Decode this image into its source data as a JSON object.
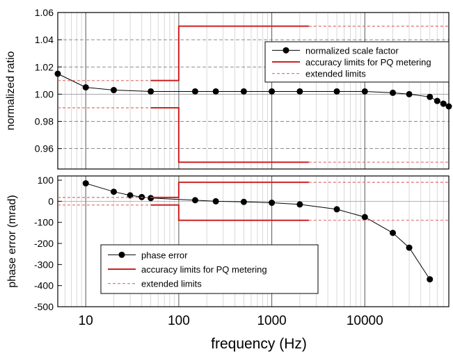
{
  "chart_data": [
    {
      "type": "line",
      "x_scale": "log",
      "xlim": [
        5,
        80000
      ],
      "ylim": [
        0.945,
        1.06
      ],
      "ylabel": "normalized ratio",
      "y_ticks": [
        "1.06",
        "1.04",
        "1.02",
        "1.00",
        "0.98",
        "0.96"
      ],
      "y_tick_values": [
        1.06,
        1.04,
        1.02,
        1.0,
        0.98,
        0.96
      ],
      "dashed_gridlines": [
        1.04,
        1.02,
        0.98,
        0.96
      ],
      "grid": true,
      "legend_position": "top-right",
      "series": [
        {
          "name": "normalized scale factor",
          "style": "line+markers",
          "color": "#000000",
          "x": [
            5,
            10,
            20,
            50,
            150,
            250,
            500,
            1000,
            2000,
            5000,
            10000,
            20000,
            30000,
            50000,
            60000,
            70000,
            80000
          ],
          "y": [
            1.015,
            1.005,
            1.003,
            1.002,
            1.002,
            1.002,
            1.002,
            1.002,
            1.002,
            1.002,
            1.002,
            1.001,
            1.0,
            0.998,
            0.995,
            0.993,
            0.991
          ]
        },
        {
          "name": "accuracy limits for PQ metering",
          "style": "solid",
          "color": "#cc2222",
          "segments": [
            [
              [
                50,
                1.01
              ],
              [
                100,
                1.01
              ],
              [
                100,
                1.05
              ],
              [
                2500,
                1.05
              ]
            ],
            [
              [
                50,
                0.99
              ],
              [
                100,
                0.99
              ],
              [
                100,
                0.95
              ],
              [
                2500,
                0.95
              ]
            ]
          ]
        },
        {
          "name": "extended limits",
          "style": "dashed",
          "color": "#e26a6a",
          "segments": [
            [
              [
                5,
                1.01
              ],
              [
                50,
                1.01
              ]
            ],
            [
              [
                5,
                0.99
              ],
              [
                50,
                0.99
              ]
            ],
            [
              [
                2500,
                1.05
              ],
              [
                80000,
                1.05
              ]
            ],
            [
              [
                2500,
                0.95
              ],
              [
                80000,
                0.95
              ]
            ]
          ]
        }
      ]
    },
    {
      "type": "line",
      "x_scale": "log",
      "xlim": [
        5,
        80000
      ],
      "ylim": [
        -500,
        120
      ],
      "xlabel": "frequency (Hz)",
      "ylabel": "phase error (mrad)",
      "x_ticks": [
        "10",
        "100",
        "1000",
        "10000"
      ],
      "x_tick_values": [
        10,
        100,
        1000,
        10000
      ],
      "y_ticks": [
        "100",
        "0",
        "-100",
        "-200",
        "-300",
        "-400",
        "-500"
      ],
      "y_tick_values": [
        100,
        0,
        -100,
        -200,
        -300,
        -400,
        -500
      ],
      "grid": true,
      "legend_position": "bottom-left",
      "series": [
        {
          "name": "phase error",
          "style": "line+markers",
          "color": "#000000",
          "x": [
            10,
            20,
            30,
            40,
            50,
            150,
            250,
            500,
            1000,
            2000,
            5000,
            10000,
            20000,
            30000,
            50000
          ],
          "y": [
            85,
            45,
            28,
            20,
            15,
            5,
            0,
            -3,
            -7,
            -15,
            -38,
            -75,
            -150,
            -220,
            -370
          ]
        },
        {
          "name": "accuracy limits for PQ metering",
          "style": "solid",
          "color": "#cc2222",
          "segments": [
            [
              [
                50,
                18
              ],
              [
                100,
                18
              ],
              [
                100,
                90
              ],
              [
                2500,
                90
              ]
            ],
            [
              [
                50,
                -18
              ],
              [
                100,
                -18
              ],
              [
                100,
                -90
              ],
              [
                2500,
                -90
              ]
            ]
          ]
        },
        {
          "name": "extended limits",
          "style": "dashed",
          "color": "#e26a6a",
          "segments": [
            [
              [
                5,
                18
              ],
              [
                50,
                18
              ]
            ],
            [
              [
                5,
                -18
              ],
              [
                50,
                -18
              ]
            ],
            [
              [
                2500,
                90
              ],
              [
                80000,
                90
              ]
            ],
            [
              [
                2500,
                -90
              ],
              [
                80000,
                -90
              ]
            ]
          ]
        }
      ]
    }
  ]
}
